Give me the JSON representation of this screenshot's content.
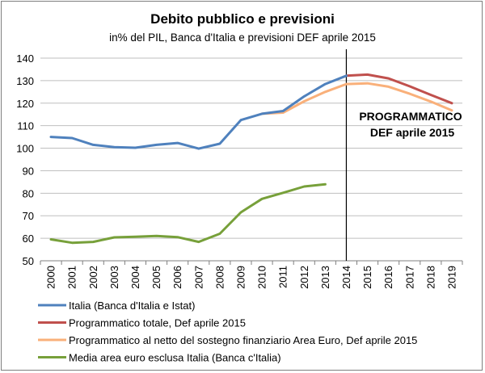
{
  "chart_data": {
    "type": "line",
    "title": "Debito pubblico e previsioni",
    "subtitle": "in% del PIL, Banca d'Italia e previsioni  DEF aprile 2015",
    "annotation_line1": "PROGRAMMATICO",
    "annotation_line2": "DEF aprile 2015",
    "x": [
      2000,
      2001,
      2002,
      2003,
      2004,
      2005,
      2006,
      2007,
      2008,
      2009,
      2010,
      2011,
      2012,
      2013,
      2014,
      2015,
      2016,
      2017,
      2018,
      2019
    ],
    "x_tick_labels": [
      "2000",
      "2001",
      "2002",
      "2003",
      "2004",
      "2005",
      "2006",
      "2007",
      "2008",
      "2009",
      "2010",
      "2011",
      "2012",
      "2013",
      "2014",
      "2015",
      "2016",
      "2017",
      "2018",
      "2019"
    ],
    "ylim": [
      50,
      140
    ],
    "y_ticks": [
      50,
      60,
      70,
      80,
      90,
      100,
      110,
      120,
      130,
      140
    ],
    "grid": "horizontal",
    "legend_placement": "bottom",
    "vertical_marker_x": 2014,
    "series": [
      {
        "name": "Italia (Banca d'Italia e Istat)",
        "color": "#4f81bd",
        "points": [
          [
            2000,
            105
          ],
          [
            2001,
            104.5
          ],
          [
            2002,
            101.5
          ],
          [
            2003,
            100.5
          ],
          [
            2004,
            100.2
          ],
          [
            2005,
            101.5
          ],
          [
            2006,
            102.3
          ],
          [
            2007,
            99.8
          ],
          [
            2008,
            102
          ],
          [
            2009,
            112.5
          ],
          [
            2010,
            115.3
          ],
          [
            2011,
            116.5
          ],
          [
            2012,
            123
          ],
          [
            2013,
            128.5
          ],
          [
            2014,
            132.2
          ]
        ]
      },
      {
        "name": "Programmatico totale, Def aprile 2015",
        "color": "#c0504d",
        "points": [
          [
            2014,
            132.2
          ],
          [
            2015,
            132.7
          ],
          [
            2016,
            131
          ],
          [
            2017,
            127.5
          ],
          [
            2018,
            123.7
          ],
          [
            2019,
            120
          ]
        ]
      },
      {
        "name": "Programmatico al netto del sostegno finanziario Area Euro,  Def aprile 2015",
        "color": "#f9b07a",
        "points": [
          [
            2010,
            115.3
          ],
          [
            2011,
            115.8
          ],
          [
            2012,
            120.8
          ],
          [
            2013,
            125
          ],
          [
            2014,
            128.5
          ],
          [
            2015,
            128.8
          ],
          [
            2016,
            127.3
          ],
          [
            2017,
            124.2
          ],
          [
            2018,
            120.7
          ],
          [
            2019,
            116.8
          ]
        ]
      },
      {
        "name": "Media area euro esclusa Italia (Banca c'Italia)",
        "color": "#77a03a",
        "points": [
          [
            2000,
            59.5
          ],
          [
            2001,
            58
          ],
          [
            2002,
            58.4
          ],
          [
            2003,
            60.4
          ],
          [
            2004,
            60.7
          ],
          [
            2005,
            61
          ],
          [
            2006,
            60.5
          ],
          [
            2007,
            58.4
          ],
          [
            2008,
            62
          ],
          [
            2009,
            71.5
          ],
          [
            2010,
            77.5
          ],
          [
            2011,
            80.2
          ],
          [
            2012,
            83
          ],
          [
            2013,
            84
          ]
        ]
      }
    ]
  }
}
